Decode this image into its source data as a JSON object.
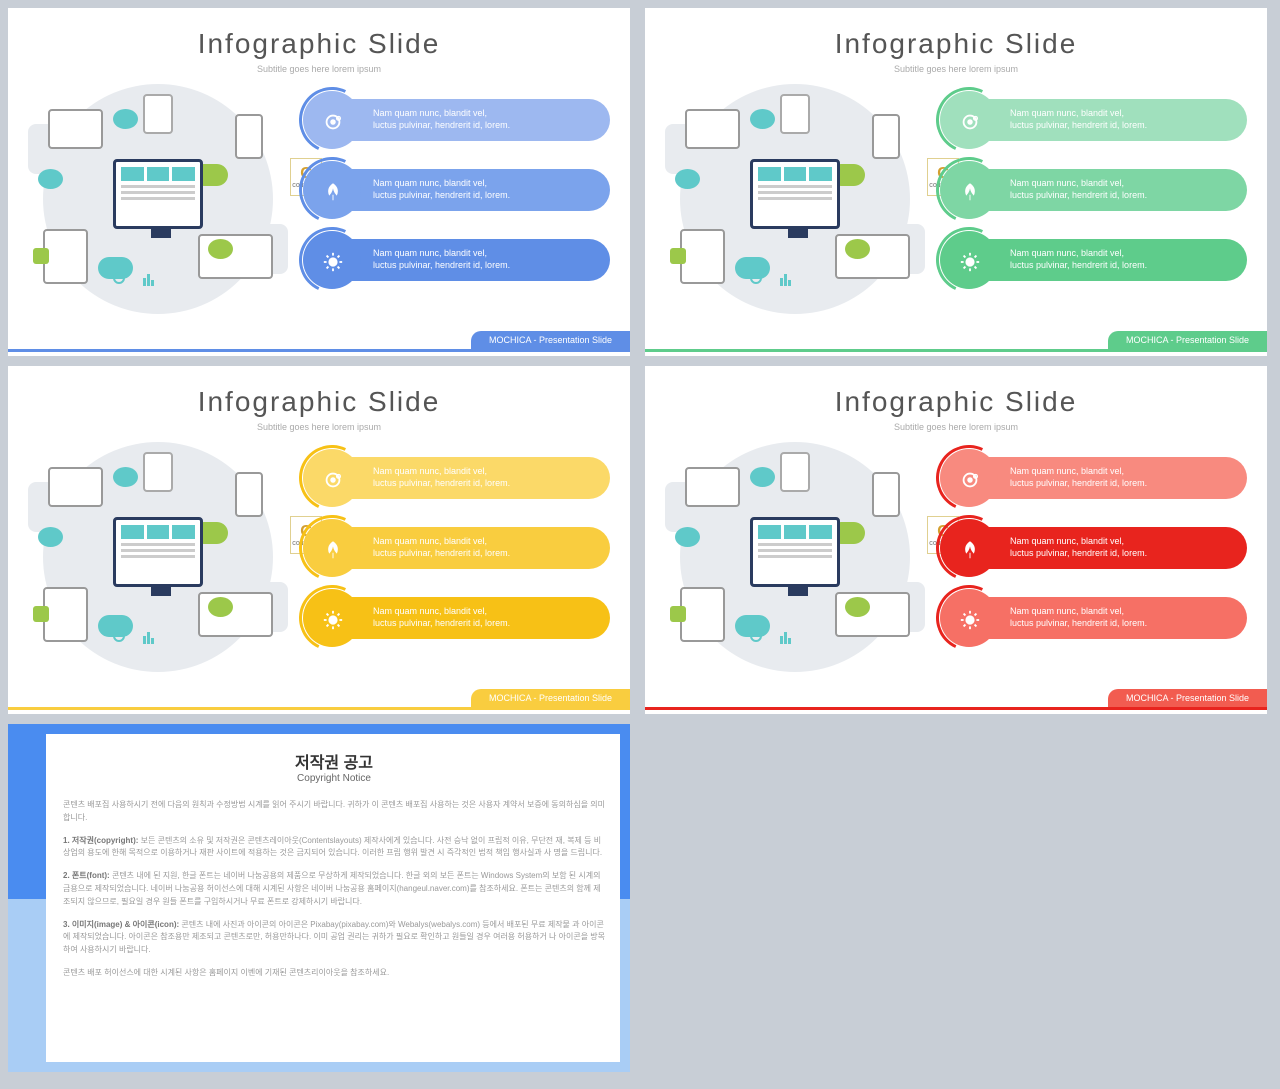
{
  "slides": {
    "title": "Infographic Slide",
    "subtitle": "Subtitle goes here lorem ipsum",
    "footer_label": "MOCHICA - Presentation Slide",
    "bar_text1": "Nam quam nunc, blandit vel,",
    "bar_text2": "luctus pulvinar, hendrerit id, lorem.",
    "badge_letter": "C",
    "badge_sub": "CONTENTS"
  },
  "variants": [
    {
      "id": "blue",
      "circle_colors": [
        "#9db8f0",
        "#7ba3ec",
        "#5f8ee6"
      ],
      "pill_colors": [
        "#9db8f0",
        "#7ba3ec",
        "#5f8ee6"
      ],
      "arc_color": "#5f8ee6",
      "footer_color": "#5f8ee6",
      "line_color": "#5f8ee6"
    },
    {
      "id": "green",
      "circle_colors": [
        "#a0e0bd",
        "#7ed6a4",
        "#5ecc8b"
      ],
      "pill_colors": [
        "#a0e0bd",
        "#7ed6a4",
        "#5ecc8b"
      ],
      "arc_color": "#5ecc8b",
      "footer_color": "#5ecc8b",
      "line_color": "#5ecc8b"
    },
    {
      "id": "yellow",
      "circle_colors": [
        "#fbd968",
        "#f9cd3f",
        "#f7c116"
      ],
      "pill_colors": [
        "#fbd968",
        "#f9cd3f",
        "#f7c116"
      ],
      "arc_color": "#f7c116",
      "footer_color": "#f9cd3f",
      "line_color": "#f9cd3f"
    },
    {
      "id": "red",
      "circle_colors": [
        "#f88a7f",
        "#e8241e",
        "#f67065"
      ],
      "pill_colors": [
        "#f88a7f",
        "#e8241e",
        "#f67065"
      ],
      "arc_color": "#e8241e",
      "footer_color": "#f25c50",
      "line_color": "#e8241e"
    }
  ],
  "icons": [
    "gear",
    "leaf",
    "sun"
  ],
  "copyright": {
    "title_ko": "저작권 공고",
    "title_en": "Copyright Notice",
    "intro": "콘텐츠 배포집 사용하시기 전에 다음의 원칙과 수정방법 시계를 읽어 주시기 바랍니다. 귀하가 이 콘텐츠 배포집 사용하는 것은 사용자 계약서 보증에 동의하심을 의미합니다.",
    "section1_label": "1. 저작권(copyright):",
    "section1_text": "보든 콘텐츠의 소유 및 저작권은 콘텐츠레이아웃(Contentslayouts) 제작사에게 있습니다. 사전 승낙 없이 프립적 이유, 무단전 재, 복제 등 비 상업의 용도에 한해 목적으로 이용하거나 재판 사이트에 적용하는 것은 금지되어 있습니다. 이러한 프립 행위 발견 시 즉각적인 법적 책임 행사실과 사 명을 드립니다.",
    "section2_label": "2. 폰트(font):",
    "section2_text": "콘텐츠 내에 된 지원, 한글 폰트는 네이버 나눔공용의 제품으로 무상하게 제작되었습니다. 한글 외의 보든 폰트는 Windows System의 보함 된 시계의 금용으로 제작되었습니다. 네이버 나눔공용 허이선스에 대해 시계된 사항은 네이버 나눔공용 홈페이지(hangeul.naver.com)를 참조하세요. 폰트는 콘텐츠의 함께 제조되지 않으므로, 필요일 경우 원들 폰트를 구입하시거나 무료 폰트로 강제하시기 바랍니다.",
    "section3_label": "3. 이미지(image) & 아이콘(icon):",
    "section3_text": "콘텐츠 내에 사진과 아이콘의 아이콘은 Pixabay(pixabay.com)와 Webalys(webalys.com) 등에서 배포된 무료 제작물 과 아이콘에 제작되었습니다. 아이콘은 참조용만 제조되고 콘텐츠로만, 허용만하나다. 이미 공업 권리는 귀하가 필요로 확인하고 원들일 경우 여러용 허용하거 나 아이콘을 방목하여 사용하시기 바랍니다.",
    "outro": "콘텐츠 배포 허이선스에 대한 시계된 사항은 홈페이지 이벤에 기재된 콘텐츠리이아웃을 참조하세요."
  }
}
